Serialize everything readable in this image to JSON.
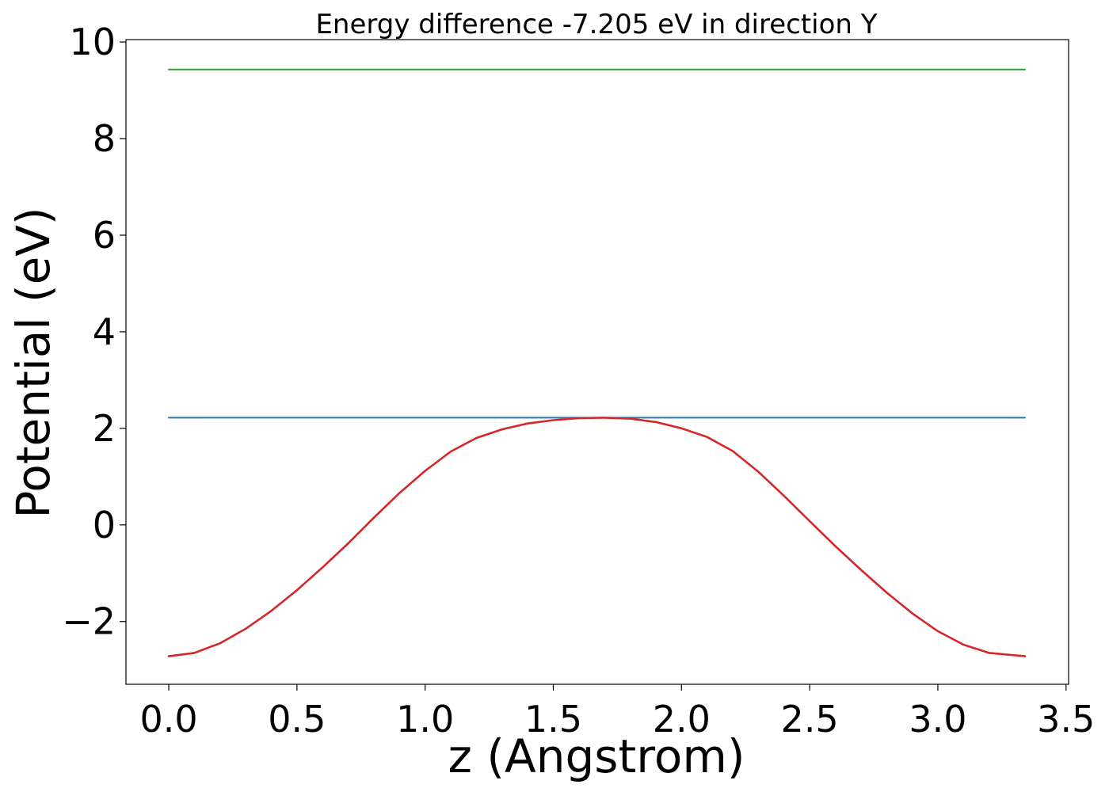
{
  "chart_data": {
    "type": "line",
    "title": "Energy difference -7.205 eV in direction Y",
    "xlabel": "z (Angstrom)",
    "ylabel": "Potential (eV)",
    "xlim": [
      -0.167,
      3.51
    ],
    "ylim": [
      -3.3,
      10.05
    ],
    "xticks": [
      0.0,
      0.5,
      1.0,
      1.5,
      2.0,
      2.5,
      3.0,
      3.5
    ],
    "xtick_labels": [
      "0.0",
      "0.5",
      "1.0",
      "1.5",
      "2.0",
      "2.5",
      "3.0",
      "3.5"
    ],
    "yticks": [
      -2,
      0,
      2,
      4,
      6,
      8,
      10
    ],
    "ytick_labels": [
      "−2",
      "0",
      "2",
      "4",
      "6",
      "8",
      "10"
    ],
    "grid": false,
    "series": [
      {
        "color": "#2ca02c",
        "x": [
          0.0,
          3.34
        ],
        "y": [
          9.43,
          9.43
        ]
      },
      {
        "color": "#1f77b4",
        "x": [
          0.0,
          3.34
        ],
        "y": [
          2.22,
          2.22
        ]
      },
      {
        "color": "#d62728",
        "x": [
          0.0,
          0.1,
          0.2,
          0.3,
          0.4,
          0.5,
          0.6,
          0.7,
          0.8,
          0.9,
          1.0,
          1.1,
          1.2,
          1.3,
          1.4,
          1.5,
          1.6,
          1.7,
          1.8,
          1.9,
          2.0,
          2.1,
          2.2,
          2.3,
          2.4,
          2.5,
          2.6,
          2.7,
          2.8,
          2.9,
          3.0,
          3.1,
          3.2,
          3.34
        ],
        "y": [
          -2.72,
          -2.65,
          -2.45,
          -2.15,
          -1.78,
          -1.35,
          -0.88,
          -0.38,
          0.15,
          0.66,
          1.12,
          1.52,
          1.8,
          1.98,
          2.1,
          2.17,
          2.21,
          2.22,
          2.2,
          2.13,
          2.0,
          1.82,
          1.53,
          1.1,
          0.6,
          0.08,
          -0.44,
          -0.93,
          -1.4,
          -1.83,
          -2.2,
          -2.48,
          -2.65,
          -2.72
        ]
      }
    ]
  }
}
